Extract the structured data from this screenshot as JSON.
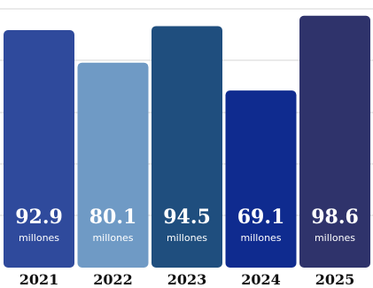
{
  "chart_data": {
    "type": "bar",
    "categories": [
      "2021",
      "2022",
      "2023",
      "2024",
      "2025"
    ],
    "values": [
      92.9,
      80.1,
      94.5,
      69.1,
      98.6
    ],
    "unit_label": "millones",
    "colors": [
      "#2f4a9c",
      "#6f9ac5",
      "#1f4e7e",
      "#0f2b8f",
      "#2f336b"
    ],
    "grid": true,
    "ylim": [
      0,
      102
    ]
  }
}
